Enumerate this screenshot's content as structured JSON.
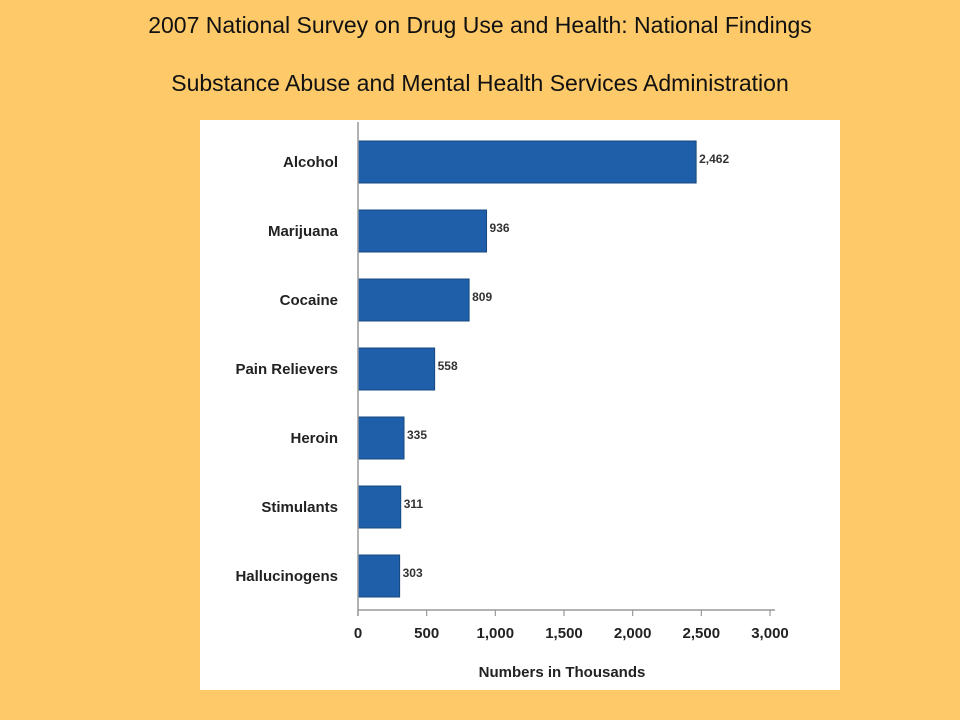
{
  "slide": {
    "title": "2007 National Survey on Drug Use and Health: National Findings",
    "subtitle": "Substance Abuse and Mental Health Services Administration"
  },
  "colors": {
    "background": "#fdc969",
    "bar": "#1f5ea8",
    "panel": "#ffffff"
  },
  "chart_data": {
    "type": "bar",
    "orientation": "horizontal",
    "categories": [
      "Alcohol",
      "Marijuana",
      "Cocaine",
      "Pain Relievers",
      "Heroin",
      "Stimulants",
      "Hallucinogens"
    ],
    "values": [
      2462,
      936,
      809,
      558,
      335,
      311,
      303
    ],
    "value_labels": [
      "2,462",
      "936",
      "809",
      "558",
      "335",
      "311",
      "303"
    ],
    "xlabel": "Numbers in Thousands",
    "xlim": [
      0,
      3000
    ],
    "xticks": [
      0,
      500,
      1000,
      1500,
      2000,
      2500,
      3000
    ],
    "xtick_labels": [
      "0",
      "500",
      "1,000",
      "1,500",
      "2,000",
      "2,500",
      "3,000"
    ],
    "grid": false,
    "legend": "none"
  }
}
